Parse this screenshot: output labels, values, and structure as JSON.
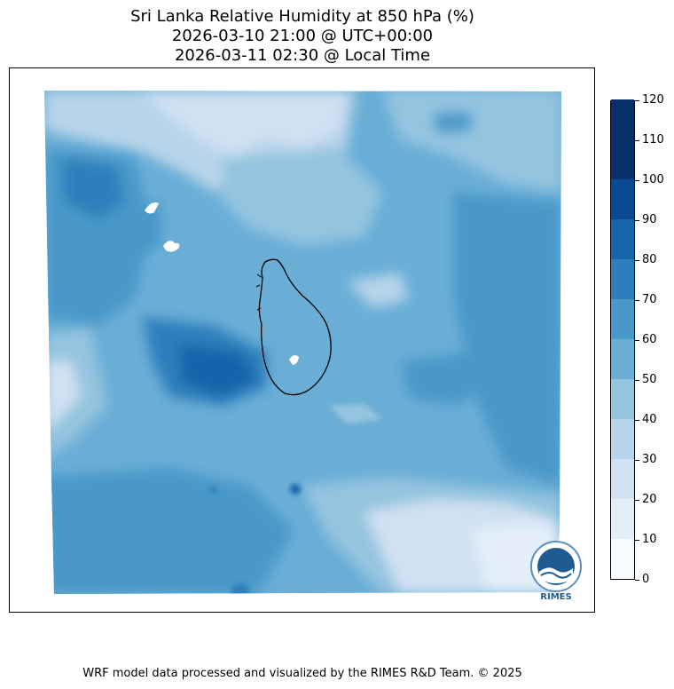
{
  "title": {
    "line1": "Sri Lanka Relative Humidity at 850 hPa (%)",
    "line2": "2026-03-10 21:00 @ UTC+00:00",
    "line3": "2026-03-11 02:30 @ Local Time"
  },
  "colorbar": {
    "ticks": [
      "0",
      "10",
      "20",
      "30",
      "40",
      "50",
      "60",
      "70",
      "80",
      "90",
      "100",
      "110",
      "120"
    ],
    "colors": [
      "#f7fbff",
      "#e3eef8",
      "#d0e1f2",
      "#b7d4ea",
      "#94c4df",
      "#6aaed6",
      "#4a98c9",
      "#2e7ebc",
      "#1764ab",
      "#084a91",
      "#08306b",
      "#08306b"
    ]
  },
  "logo": {
    "text": "RIMES"
  },
  "footer": "WRF model data processed and visualized by the RIMES R&D Team. © 2025"
}
